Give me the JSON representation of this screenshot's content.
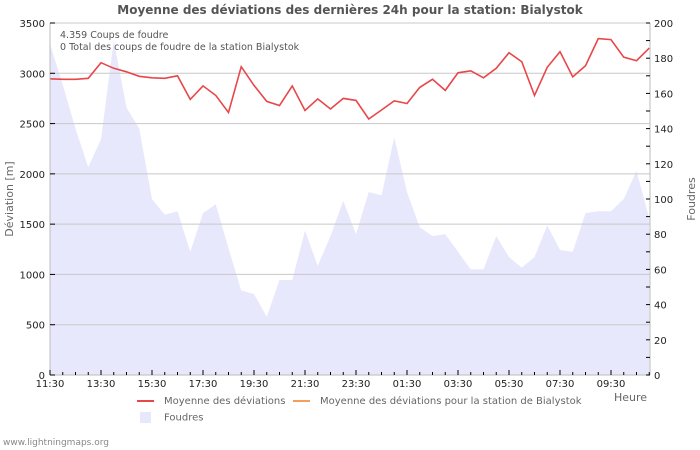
{
  "chart_data": {
    "type": "line",
    "title": "Moyenne des déviations des dernières 24h pour la station: Bialystok",
    "xlabel": "Heure",
    "ylabel": "Déviation  [m]",
    "y2label": "Foudres",
    "ylim": [
      0,
      3500
    ],
    "y2lim": [
      0,
      200
    ],
    "yticks": [
      0,
      500,
      1000,
      1500,
      2000,
      2500,
      3000,
      3500
    ],
    "y2ticks": [
      0,
      20,
      40,
      60,
      80,
      100,
      120,
      140,
      160,
      180,
      200
    ],
    "xtick_labels": [
      "11:30",
      "13:30",
      "15:30",
      "17:30",
      "19:30",
      "21:30",
      "23:30",
      "01:30",
      "03:30",
      "05:30",
      "07:30",
      "09:30"
    ],
    "grid": true,
    "legend_position": "bottom",
    "x": [
      "11:30",
      "12:00",
      "12:30",
      "13:00",
      "13:30",
      "14:00",
      "14:30",
      "15:00",
      "15:30",
      "16:00",
      "16:30",
      "17:00",
      "17:30",
      "18:00",
      "18:30",
      "19:00",
      "19:30",
      "20:00",
      "20:30",
      "21:00",
      "21:30",
      "22:00",
      "22:30",
      "23:00",
      "23:30",
      "00:00",
      "00:30",
      "01:00",
      "01:30",
      "02:00",
      "02:30",
      "03:00",
      "03:30",
      "04:00",
      "04:30",
      "05:00",
      "05:30",
      "06:00",
      "06:30",
      "07:00",
      "07:30",
      "08:00",
      "08:30",
      "09:00",
      "09:30",
      "10:00",
      "10:30",
      "11:00"
    ],
    "series": [
      {
        "name": "Moyenne des déviations",
        "axis": "left",
        "type": "line",
        "color": "#e8474a",
        "values": [
          2945,
          2940,
          2940,
          2950,
          3105,
          3050,
          3015,
          2970,
          2955,
          2950,
          2975,
          2740,
          2875,
          2780,
          2610,
          3065,
          2880,
          2720,
          2680,
          2875,
          2630,
          2745,
          2645,
          2750,
          2730,
          2545,
          2635,
          2725,
          2700,
          2860,
          2940,
          2830,
          3005,
          3025,
          2955,
          3050,
          3205,
          3115,
          2780,
          3060,
          3215,
          2965,
          3075,
          3345,
          3335,
          3160,
          3125,
          3250
        ]
      },
      {
        "name": "Moyenne des déviations pour la station de Bialystok",
        "axis": "left",
        "type": "line",
        "color": "#f5a05a",
        "values": []
      },
      {
        "name": "Foudres",
        "axis": "right",
        "type": "area",
        "color": "#e8e8fc",
        "values": [
          188,
          165,
          140,
          118,
          134,
          190,
          152,
          140,
          100,
          91,
          93,
          70,
          92,
          97,
          72,
          48,
          46,
          33,
          54,
          54,
          82,
          62,
          79,
          99,
          80,
          104,
          102,
          135,
          104,
          84,
          79,
          80,
          70,
          60,
          60,
          79,
          67,
          61,
          67,
          85,
          71,
          70,
          92,
          93,
          93,
          100,
          116,
          89
        ]
      }
    ]
  },
  "info": {
    "line1": "4.359  Coups de foudre",
    "line2": "0 Total des coups de foudre de la station Bialystok"
  },
  "legend": {
    "item1": "Moyenne des déviations",
    "item2": "Moyenne des déviations pour la station de Bialystok",
    "item3": "Foudres"
  },
  "watermark": "www.lightningmaps.org",
  "colors": {
    "deviation_line": "#e8474a",
    "station_line": "#f5a05a",
    "foudres_area": "#e8e8fc",
    "grid": "#c8c8c8"
  }
}
